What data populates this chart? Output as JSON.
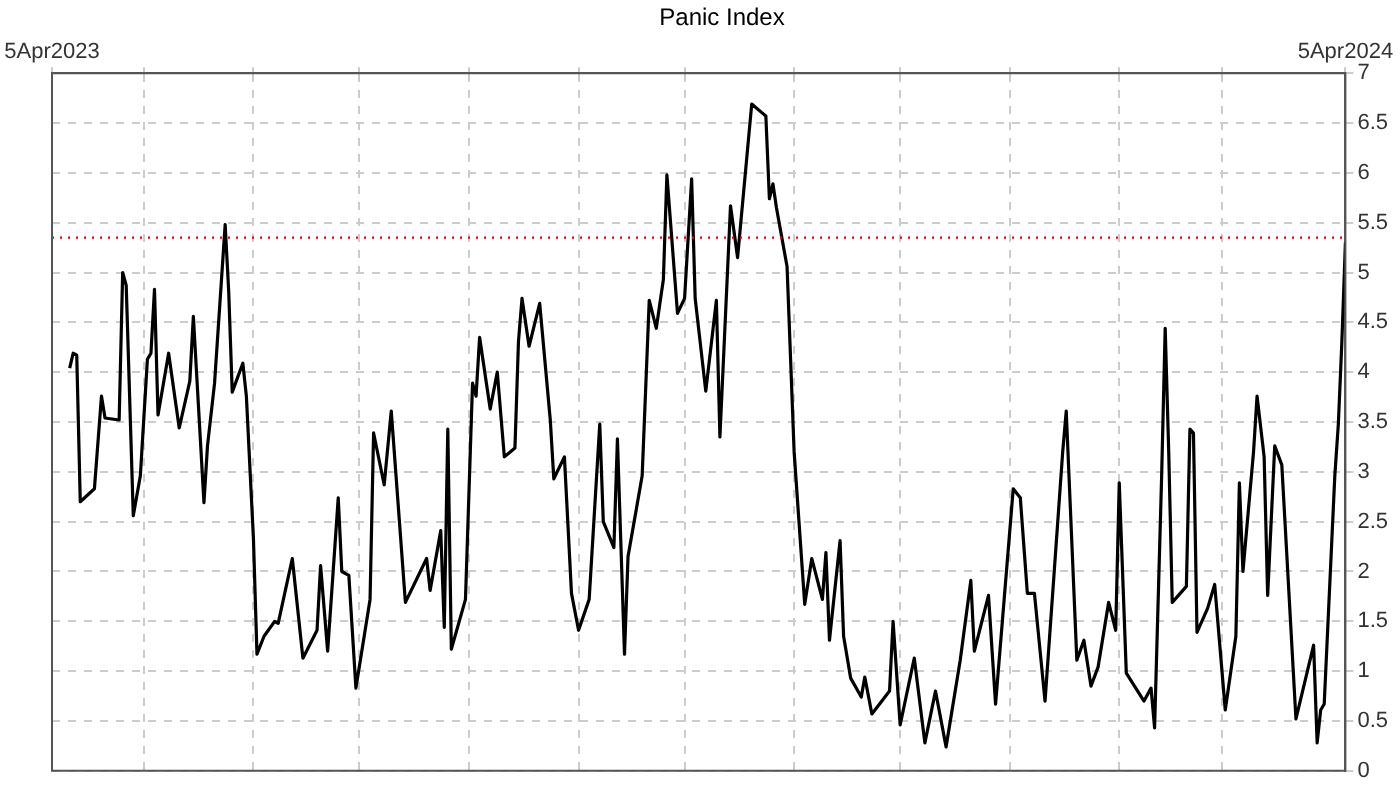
{
  "chart_data": {
    "type": "line",
    "title": "Panic Index",
    "x": [
      "2023-04-10",
      "2023-04-11",
      "2023-04-12",
      "2023-04-13",
      "2023-04-17",
      "2023-04-19",
      "2023-04-20",
      "2023-04-24",
      "2023-04-25",
      "2023-04-26",
      "2023-04-28",
      "2023-04-30",
      "2023-05-02",
      "2023-05-03",
      "2023-05-04",
      "2023-05-05",
      "2023-05-08",
      "2023-05-11",
      "2023-05-14",
      "2023-05-15",
      "2023-05-18",
      "2023-05-19",
      "2023-05-21",
      "2023-05-24",
      "2023-05-25",
      "2023-05-26",
      "2023-05-29",
      "2023-05-30",
      "2023-06-01",
      "2023-06-02",
      "2023-06-04",
      "2023-06-07",
      "2023-06-08",
      "2023-06-12",
      "2023-06-15",
      "2023-06-19",
      "2023-06-20",
      "2023-06-22",
      "2023-06-25",
      "2023-06-26",
      "2023-06-28",
      "2023-06-30",
      "2023-07-04",
      "2023-07-05",
      "2023-07-08",
      "2023-07-10",
      "2023-07-14",
      "2023-07-17",
      "2023-07-20",
      "2023-07-21",
      "2023-07-24",
      "2023-07-25",
      "2023-07-26",
      "2023-07-27",
      "2023-07-31",
      "2023-08-02",
      "2023-08-03",
      "2023-08-04",
      "2023-08-07",
      "2023-08-09",
      "2023-08-11",
      "2023-08-14",
      "2023-08-15",
      "2023-08-16",
      "2023-08-18",
      "2023-08-21",
      "2023-08-24",
      "2023-08-25",
      "2023-08-28",
      "2023-08-30",
      "2023-09-01",
      "2023-09-04",
      "2023-09-07",
      "2023-09-08",
      "2023-09-11",
      "2023-09-12",
      "2023-09-14",
      "2023-09-15",
      "2023-09-19",
      "2023-09-21",
      "2023-09-23",
      "2023-09-25",
      "2023-09-26",
      "2023-09-29",
      "2023-10-01",
      "2023-10-03",
      "2023-10-04",
      "2023-10-07",
      "2023-10-10",
      "2023-10-11",
      "2023-10-14",
      "2023-10-16",
      "2023-10-20",
      "2023-10-24",
      "2023-10-25",
      "2023-10-26",
      "2023-10-27",
      "2023-10-30",
      "2023-11-01",
      "2023-11-04",
      "2023-11-06",
      "2023-11-09",
      "2023-11-10",
      "2023-11-11",
      "2023-11-14",
      "2023-11-15",
      "2023-11-17",
      "2023-11-20",
      "2023-11-21",
      "2023-11-23",
      "2023-11-28",
      "2023-11-29",
      "2023-12-01",
      "2023-12-05",
      "2023-12-08",
      "2023-12-11",
      "2023-12-14",
      "2023-12-18",
      "2023-12-21",
      "2023-12-22",
      "2023-12-26",
      "2023-12-28",
      "2024-01-02",
      "2024-01-04",
      "2024-01-06",
      "2024-01-08",
      "2024-01-11",
      "2024-01-16",
      "2024-01-17",
      "2024-01-20",
      "2024-01-22",
      "2024-01-24",
      "2024-01-26",
      "2024-01-29",
      "2024-01-31",
      "2024-02-01",
      "2024-02-03",
      "2024-02-08",
      "2024-02-10",
      "2024-02-11",
      "2024-02-13",
      "2024-02-14",
      "2024-02-15",
      "2024-02-16",
      "2024-02-20",
      "2024-02-21",
      "2024-02-22",
      "2024-02-23",
      "2024-02-26",
      "2024-02-28",
      "2024-03-02",
      "2024-03-05",
      "2024-03-06",
      "2024-03-07",
      "2024-03-10",
      "2024-03-11",
      "2024-03-13",
      "2024-03-14",
      "2024-03-16",
      "2024-03-18",
      "2024-03-22",
      "2024-03-27",
      "2024-03-28",
      "2024-03-29",
      "2024-03-30",
      "2024-04-02",
      "2024-04-03",
      "2024-04-04",
      "2024-04-05"
    ],
    "series": [
      {
        "color": "#000000",
        "values": [
          4.04,
          4.19,
          4.17,
          2.7,
          2.83,
          3.76,
          3.54,
          3.52,
          5.0,
          4.87,
          2.56,
          2.96,
          4.13,
          4.19,
          4.83,
          3.57,
          4.19,
          3.44,
          3.91,
          4.56,
          2.69,
          3.26,
          3.89,
          5.48,
          4.81,
          3.8,
          4.09,
          3.76,
          2.33,
          1.17,
          1.35,
          1.5,
          1.48,
          2.13,
          1.13,
          1.41,
          2.06,
          1.2,
          2.74,
          2.0,
          1.96,
          0.83,
          1.72,
          3.39,
          2.87,
          3.61,
          1.69,
          1.91,
          2.13,
          1.81,
          2.41,
          1.44,
          3.43,
          1.22,
          1.72,
          3.89,
          3.76,
          4.35,
          3.63,
          4.0,
          3.15,
          3.24,
          4.31,
          4.74,
          4.26,
          4.69,
          3.52,
          2.93,
          3.15,
          1.78,
          1.41,
          1.72,
          3.48,
          2.5,
          2.24,
          3.33,
          1.17,
          2.15,
          2.96,
          4.72,
          4.44,
          4.93,
          5.98,
          4.59,
          4.74,
          5.94,
          4.74,
          3.81,
          4.72,
          3.35,
          5.67,
          5.15,
          6.69,
          6.57,
          5.74,
          5.89,
          5.65,
          5.06,
          3.2,
          1.67,
          2.13,
          1.72,
          2.19,
          1.31,
          2.31,
          1.35,
          0.93,
          0.74,
          0.94,
          0.57,
          0.8,
          1.5,
          0.46,
          1.13,
          0.28,
          0.8,
          0.24,
          1.11,
          1.91,
          1.2,
          1.76,
          0.67,
          2.83,
          2.74,
          1.78,
          1.78,
          0.7,
          3.2,
          3.61,
          1.11,
          1.31,
          0.85,
          1.04,
          1.69,
          1.41,
          2.89,
          0.98,
          0.7,
          0.83,
          0.43,
          2.96,
          4.44,
          3.2,
          1.69,
          1.85,
          3.43,
          3.39,
          1.39,
          1.63,
          1.87,
          0.61,
          1.35,
          2.89,
          2.0,
          3.2,
          3.76,
          3.15,
          1.76,
          3.26,
          3.07,
          0.52,
          1.26,
          0.28,
          0.61,
          0.67,
          2.96,
          3.48,
          4.31,
          5.3
        ]
      }
    ],
    "xlim": [
      "2023-04-05",
      "2024-04-05"
    ],
    "xticks": [
      {
        "value": "2023-04-05",
        "label": "5Apr2023"
      },
      {
        "value": "2023-05-01",
        "label": null
      },
      {
        "value": "2023-06-01",
        "label": null
      },
      {
        "value": "2023-07-01",
        "label": null
      },
      {
        "value": "2023-08-01",
        "label": null
      },
      {
        "value": "2023-09-01",
        "label": null
      },
      {
        "value": "2023-10-01",
        "label": null
      },
      {
        "value": "2023-11-01",
        "label": null
      },
      {
        "value": "2023-12-01",
        "label": null
      },
      {
        "value": "2024-01-01",
        "label": null
      },
      {
        "value": "2024-02-01",
        "label": null
      },
      {
        "value": "2024-03-01",
        "label": null
      },
      {
        "value": "2024-04-05",
        "label": "5Apr2024"
      }
    ],
    "ylim": [
      0,
      7
    ],
    "yticks": [
      0,
      0.5,
      1,
      1.5,
      2,
      2.5,
      3,
      3.5,
      4,
      4.5,
      5,
      5.5,
      6,
      6.5,
      7
    ],
    "ref_lines": [
      {
        "axis": "y",
        "value": 5.35,
        "color": "#ff0000",
        "line_style": "dotted"
      }
    ],
    "grid": true,
    "marker": "none",
    "line_style": "solid"
  }
}
